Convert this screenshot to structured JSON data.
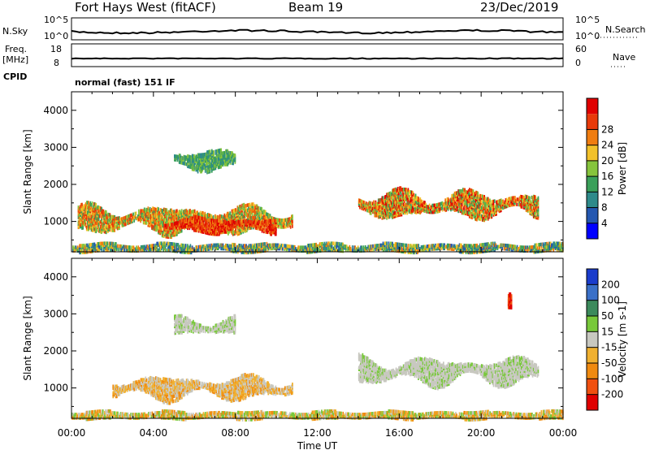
{
  "header": {
    "radar": "Fort Hays West (fitACF)",
    "beam": "Beam 19",
    "date": "23/Dec/2019"
  },
  "mode_text": "normal (fast) 151 IF",
  "strips": {
    "noise": {
      "left_label": "N.Sky",
      "right_label": "N.Search",
      "left_ticks": [
        "10^5",
        "10^0"
      ],
      "right_ticks": [
        "10^5",
        "10^0"
      ]
    },
    "freq": {
      "left_label": "Freq.",
      "left_unit": "[MHz]",
      "left_extra": "CPID",
      "right_label": "Nave",
      "left_ticks": [
        18,
        8
      ],
      "right_ticks": [
        60,
        0
      ]
    }
  },
  "chart_data": [
    {
      "type": "heatmap",
      "title": "",
      "xlabel": "",
      "ylabel": "Slant Range [km]",
      "x_ticks": [
        "00:00",
        "04:00",
        "08:00",
        "12:00",
        "16:00",
        "20:00",
        "00:00"
      ],
      "y_ticks": [
        1000,
        2000,
        3000,
        4000
      ],
      "xlim_hours": [
        0,
        24
      ],
      "ylim_km": [
        180,
        4500
      ],
      "colorbar": {
        "label": "Power [dB]",
        "ticks": [
          4,
          8,
          12,
          16,
          20,
          24,
          28
        ],
        "colors": [
          "#0000ff",
          "#2457b0",
          "#2e8a8a",
          "#3aa05a",
          "#86c43c",
          "#f2c12a",
          "#f07d10",
          "#e83a0a",
          "#e00000"
        ]
      },
      "regions": [
        {
          "t": [
            0.3,
            10.8
          ],
          "km": [
            700,
            1400
          ],
          "level": "mid"
        },
        {
          "t": [
            4.5,
            10.0
          ],
          "km": [
            700,
            1100
          ],
          "level": "high"
        },
        {
          "t": [
            14.0,
            22.8
          ],
          "km": [
            1100,
            1800
          ],
          "level": "mid-high"
        },
        {
          "t": [
            5.0,
            8.0
          ],
          "km": [
            2400,
            2900
          ],
          "level": "low"
        },
        {
          "t": [
            0.0,
            24.0
          ],
          "km": [
            180,
            400
          ],
          "level": "ground-scatter"
        }
      ]
    },
    {
      "type": "heatmap",
      "title": "",
      "xlabel": "Time UT",
      "ylabel": "Slant Range [km]",
      "x_ticks": [
        "00:00",
        "04:00",
        "08:00",
        "12:00",
        "16:00",
        "20:00",
        "00:00"
      ],
      "y_ticks": [
        1000,
        2000,
        3000,
        4000
      ],
      "xlim_hours": [
        0,
        24
      ],
      "ylim_km": [
        180,
        4500
      ],
      "colorbar": {
        "label": "Velocity [m s-1]",
        "ticks": [
          200,
          100,
          50,
          15,
          -15,
          -50,
          -100,
          -200
        ],
        "colors": [
          "#1a3ccc",
          "#3a70c8",
          "#3c8a5c",
          "#78c83a",
          "#c8c8c0",
          "#f0b030",
          "#f08a10",
          "#f05010",
          "#e00000"
        ]
      },
      "regions": [
        {
          "t": [
            2.0,
            10.8
          ],
          "km": [
            700,
            1300
          ],
          "level": "gray-orange"
        },
        {
          "t": [
            14.0,
            22.8
          ],
          "km": [
            1100,
            1800
          ],
          "level": "gray"
        },
        {
          "t": [
            5.0,
            8.0
          ],
          "km": [
            2400,
            2900
          ],
          "level": "gray"
        },
        {
          "t": [
            21.3,
            21.5
          ],
          "km": [
            3100,
            3500
          ],
          "level": "red"
        },
        {
          "t": [
            0.0,
            24.0
          ],
          "km": [
            180,
            350
          ],
          "level": "orange-low"
        }
      ]
    }
  ]
}
